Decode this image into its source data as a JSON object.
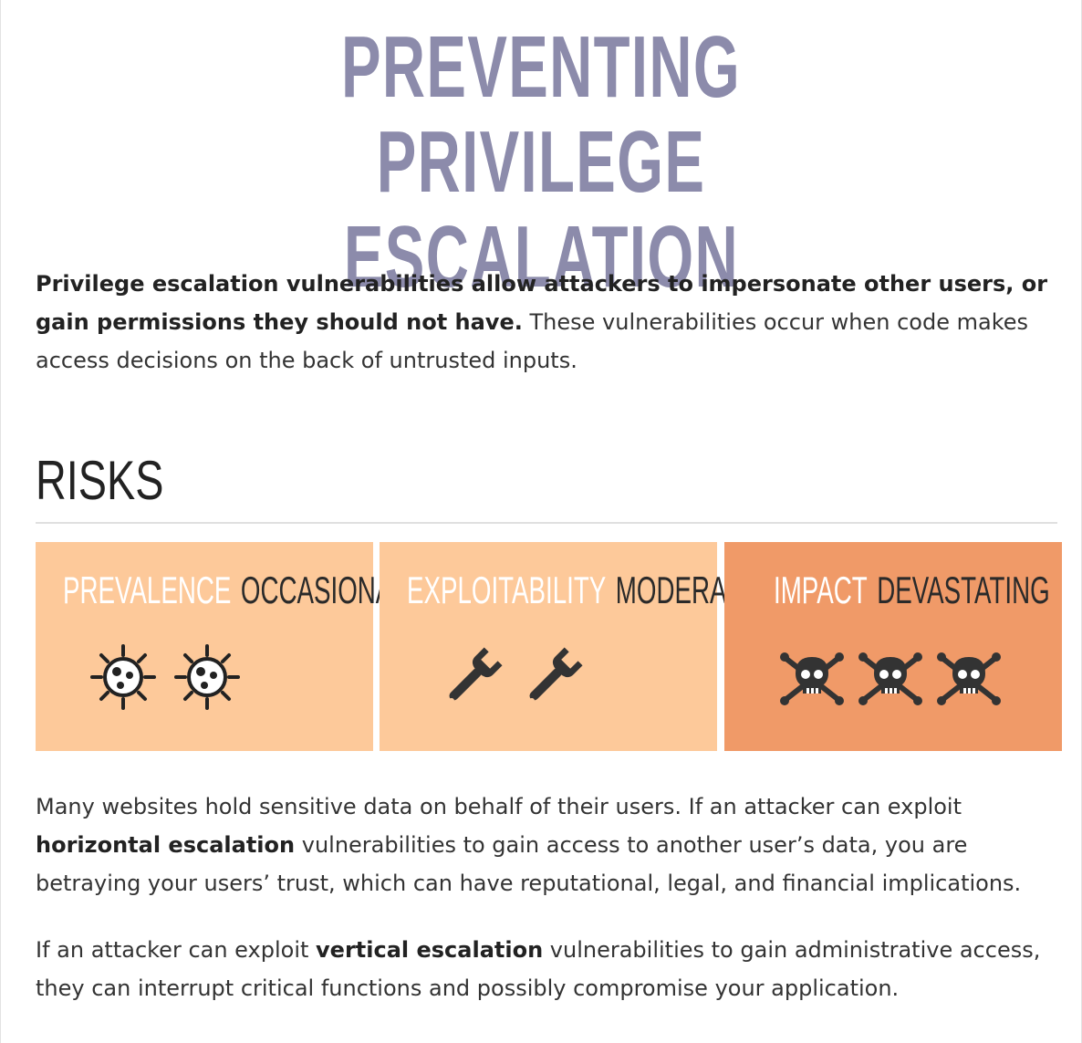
{
  "title_line1": "PREVENTING PRIVILEGE",
  "title_line2": "ESCALATION",
  "intro": {
    "bold": "Privilege escalation vulnerabilities allow attackers to impersonate other users, or gain permissions they should not have.",
    "rest": " These vulnerabilities occur when code makes access decisions on the back of untrusted inputs."
  },
  "risks_heading": "RISKS",
  "risk_cards": [
    {
      "label": "PREVALENCE",
      "value": "OCCASIONAL",
      "icon": "virus-icon",
      "icon_count": 2,
      "bg": "#fdc99a"
    },
    {
      "label": "EXPLOITABILITY",
      "value": "MODERATE",
      "icon": "wrench-icon",
      "icon_count": 2,
      "bg": "#fdc99a"
    },
    {
      "label": "IMPACT",
      "value": "DEVASTATING",
      "icon": "skull-crossbones-icon",
      "icon_count": 3,
      "bg": "#f09a68"
    }
  ],
  "paragraph1": {
    "before": "Many websites hold sensitive data on behalf of their users. If an attacker can exploit ",
    "bold": "horizontal escalation",
    "after": " vulnerabilities to gain access to another user’s data, you are betraying your users’ trust, which can have reputational, legal, and financial implications."
  },
  "paragraph2": {
    "before": "If an attacker can exploit ",
    "bold": "vertical escalation",
    "after": " vulnerabilities to gain administrative access, they can interrupt critical functions and possibly compromise your application."
  }
}
